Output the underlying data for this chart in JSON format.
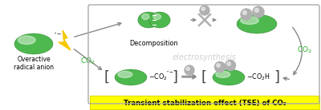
{
  "title": "Transient stabilization effect (TSE) of CO₂",
  "title_bg": "#ffff00",
  "title_color": "#000000",
  "label_overactive": "Overactive\nradical anion",
  "label_decomposition": "Decomposition",
  "label_electrosynthesis": "electrosynthesis",
  "label_co2_left": "CO₂",
  "label_co2_right": "CO₂",
  "green_fill": "#4db84d",
  "green_dark": "#2a7a2a",
  "gray_color": "#b0b0b0",
  "arrow_color": "#888888",
  "lightning_color": "#f5c800",
  "fig_width": 4.0,
  "fig_height": 1.38,
  "dpi": 100
}
